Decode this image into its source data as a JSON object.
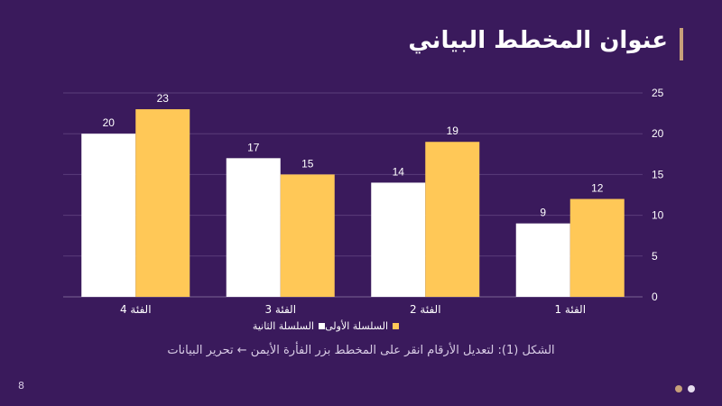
{
  "slide": {
    "title": "عنوان المخطط البياني",
    "caption": "الشكل (1): لتعديل الأرقام انقر على المخطط بزر الفأرة الأيمن ← تحرير البيانات",
    "page_number": "8",
    "colors": {
      "background": "#3a1a5c",
      "accent": "#c7a07a",
      "dot_1": "#c7a07a",
      "dot_2": "#e6dcef"
    }
  },
  "chart_data": {
    "type": "bar",
    "categories": [
      "الفئة 4",
      "الفئة 3",
      "الفئة 2",
      "الفئة 1"
    ],
    "series": [
      {
        "name": "السلسلة الثانية",
        "values": [
          20,
          17,
          14,
          9
        ],
        "color": "#ffffff"
      },
      {
        "name": "السلسلة الأولى",
        "values": [
          23,
          15,
          19,
          12
        ],
        "color": "#ffc857"
      }
    ],
    "ylim": [
      0,
      25
    ],
    "y_ticks": [
      "0",
      "5",
      "10",
      "15",
      "20",
      "25"
    ],
    "y_axis_position": "right",
    "grid": true,
    "legend_position": "bottom",
    "data_labels": true,
    "colors": {
      "text": "#ffffff",
      "grid": "#5a3d7a"
    }
  }
}
